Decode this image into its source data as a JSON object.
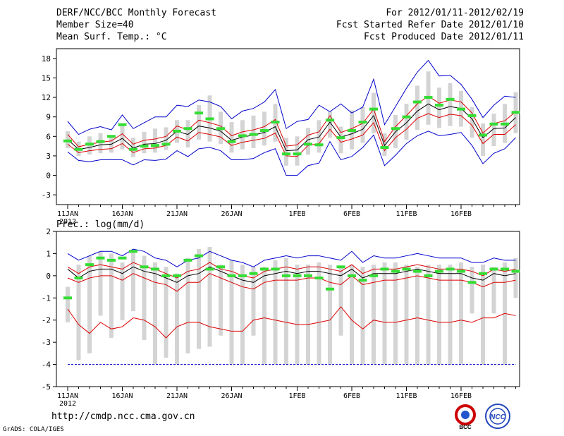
{
  "header": {
    "title": "DERF/NCC/BCC Monthly Forecast",
    "member_size": "Member Size=40",
    "variable": "Mean Surf. Temp.: °C",
    "for_range": "For 2012/01/11-2012/02/19",
    "started": "Fcst Started Refer Date 2012/01/10",
    "produced": "Fcst Produced Date 2012/01/11"
  },
  "footer": {
    "url": "http://cmdp.ncc.cma.gov.cn",
    "credit": "GrADS: COLA/IGES",
    "logo_left_text": "BCC",
    "logo_right_text": "NCC"
  },
  "colors": {
    "green": "#33dd33",
    "red": "#dd0000",
    "blue": "#0000cc",
    "black": "#000000",
    "box": "#d4d4d4"
  },
  "chart_data": [
    {
      "type": "line",
      "title": "Mean Surf. Temp.: °C",
      "ylim": [
        -4.5,
        19.5
      ],
      "yticks": [
        -3,
        0,
        3,
        6,
        9,
        12,
        15,
        18
      ],
      "x_tick_labels": [
        {
          "day": 1,
          "label": "11JAN"
        },
        {
          "day": 6,
          "label": "16JAN"
        },
        {
          "day": 11,
          "label": "21JAN"
        },
        {
          "day": 16,
          "label": "26JAN"
        },
        {
          "day": 22,
          "label": "1FEB"
        },
        {
          "day": 27,
          "label": "6FEB"
        },
        {
          "day": 32,
          "label": "11FEB"
        },
        {
          "day": 37,
          "label": "16FEB"
        }
      ],
      "year_label": "2012",
      "series": [
        {
          "name": "max",
          "color": "blue",
          "values": [
            8.3,
            6.3,
            7.1,
            7.5,
            7.0,
            9.3,
            7.2,
            8.1,
            9.0,
            9.0,
            10.8,
            10.6,
            11.6,
            11.3,
            10.6,
            8.7,
            9.9,
            10.3,
            11.3,
            13.2,
            7.2,
            8.3,
            8.6,
            10.8,
            9.8,
            11.0,
            9.6,
            10.5,
            14.8,
            7.8,
            10.6,
            13.4,
            15.9,
            17.7,
            15.3,
            15.4,
            14.0,
            11.7,
            8.9,
            10.8,
            12.2,
            12.0
          ]
        },
        {
          "name": "upper",
          "color": "red",
          "values": [
            6.3,
            4.4,
            4.8,
            5.1,
            5.3,
            6.4,
            4.8,
            5.4,
            5.6,
            6.0,
            7.6,
            7.0,
            8.5,
            8.1,
            7.6,
            6.1,
            6.7,
            7.0,
            7.5,
            8.6,
            4.5,
            4.7,
            6.2,
            6.7,
            9.2,
            6.6,
            7.2,
            8.0,
            10.2,
            5.2,
            7.5,
            9.2,
            11.0,
            12.2,
            11.1,
            11.6,
            11.3,
            9.6,
            6.5,
            8.0,
            8.4,
            9.8
          ]
        },
        {
          "name": "mean",
          "color": "black",
          "values": [
            5.5,
            4.0,
            4.3,
            4.7,
            4.8,
            5.7,
            4.2,
            4.8,
            4.9,
            5.4,
            6.8,
            6.3,
            7.6,
            7.3,
            6.8,
            5.4,
            5.9,
            6.2,
            6.6,
            7.5,
            3.8,
            3.9,
            5.5,
            5.9,
            8.2,
            5.9,
            6.4,
            7.1,
            9.2,
            4.6,
            6.7,
            8.1,
            9.9,
            11.0,
            10.1,
            10.6,
            10.3,
            8.7,
            5.8,
            7.2,
            7.3,
            8.9
          ]
        },
        {
          "name": "lower",
          "color": "red",
          "values": [
            4.8,
            3.5,
            3.8,
            4.0,
            4.1,
            4.9,
            3.5,
            4.1,
            4.2,
            4.6,
            5.9,
            5.3,
            6.6,
            6.3,
            5.9,
            4.6,
            5.1,
            5.4,
            5.7,
            6.5,
            3.0,
            2.9,
            4.6,
            4.9,
            7.1,
            5.1,
            5.6,
            6.2,
            8.1,
            3.8,
            5.8,
            7.1,
            8.8,
            9.5,
            8.9,
            9.4,
            9.2,
            7.7,
            4.9,
            6.3,
            6.3,
            7.8
          ]
        },
        {
          "name": "min",
          "color": "blue",
          "values": [
            3.6,
            2.3,
            2.1,
            2.4,
            2.4,
            2.4,
            1.6,
            2.4,
            2.3,
            2.5,
            3.8,
            2.9,
            4.1,
            4.3,
            3.8,
            2.4,
            2.4,
            2.6,
            3.5,
            4.1,
            0.0,
            0.0,
            1.5,
            1.9,
            5.2,
            2.4,
            2.9,
            4.3,
            6.2,
            1.5,
            3.1,
            4.9,
            6.1,
            6.8,
            6.1,
            6.3,
            6.6,
            4.6,
            1.8,
            3.4,
            4.1,
            5.8
          ]
        }
      ],
      "member_range": {
        "name": "member spread (gray bars)",
        "low": [
          4.2,
          3.0,
          3.2,
          3.4,
          3.5,
          4.0,
          2.8,
          3.4,
          3.5,
          3.9,
          5.0,
          4.3,
          5.5,
          5.2,
          4.8,
          3.5,
          4.0,
          4.2,
          4.6,
          5.2,
          1.5,
          1.5,
          3.2,
          3.5,
          5.8,
          3.4,
          4.0,
          5.0,
          6.5,
          3.0,
          4.2,
          5.5,
          7.0,
          7.8,
          7.3,
          7.6,
          7.5,
          5.8,
          3.0,
          4.5,
          5.0,
          6.5
        ],
        "high": [
          6.8,
          5.2,
          6.0,
          6.5,
          6.2,
          8.0,
          5.8,
          6.7,
          7.2,
          7.4,
          8.5,
          8.5,
          10.8,
          12.3,
          9.8,
          8.2,
          8.5,
          9.2,
          9.8,
          11.0,
          5.8,
          6.0,
          7.3,
          8.5,
          9.8,
          7.5,
          10.0,
          10.5,
          12.7,
          6.5,
          9.3,
          11.0,
          13.8,
          16.0,
          13.5,
          14.2,
          13.0,
          10.5,
          8.0,
          9.5,
          11.0,
          12.8
        ]
      },
      "observed_green": [
        5.3,
        4.0,
        4.8,
        5.2,
        6.0,
        7.8,
        4.0,
        4.5,
        4.6,
        4.8,
        6.8,
        7.2,
        9.6,
        8.7,
        7.2,
        5.2,
        6.1,
        6.3,
        6.9,
        8.2,
        3.3,
        3.3,
        4.8,
        4.7,
        8.5,
        5.8,
        6.9,
        8.2,
        10.2,
        4.3,
        7.2,
        9.0,
        11.3,
        12.0,
        10.8,
        11.7,
        10.2,
        9.2,
        6.2,
        7.9,
        7.9,
        9.7
      ]
    },
    {
      "type": "line",
      "title": "Prec.: log(mm/d)",
      "ylim": [
        -5,
        2
      ],
      "yticks": [
        -5,
        -4,
        -3,
        -2,
        -1,
        0,
        1,
        2
      ],
      "x_tick_labels": [
        {
          "day": 1,
          "label": "11JAN"
        },
        {
          "day": 6,
          "label": "16JAN"
        },
        {
          "day": 11,
          "label": "21JAN"
        },
        {
          "day": 16,
          "label": "26JAN"
        },
        {
          "day": 22,
          "label": "1FEB"
        },
        {
          "day": 27,
          "label": "6FEB"
        },
        {
          "day": 32,
          "label": "11FEB"
        },
        {
          "day": 37,
          "label": "16FEB"
        }
      ],
      "year_label": "2012",
      "series": [
        {
          "name": "max",
          "color": "blue",
          "values": [
            1.0,
            0.7,
            0.9,
            1.1,
            1.1,
            0.9,
            1.2,
            1.1,
            0.8,
            0.7,
            0.4,
            0.7,
            0.8,
            1.1,
            0.9,
            0.7,
            0.6,
            0.4,
            0.7,
            0.8,
            0.9,
            0.8,
            0.9,
            0.9,
            0.8,
            0.7,
            1.1,
            0.6,
            0.9,
            0.8,
            0.8,
            0.9,
            1.0,
            0.9,
            0.8,
            0.8,
            0.8,
            0.6,
            0.6,
            0.8,
            0.7,
            0.7
          ]
        },
        {
          "name": "upper",
          "color": "red",
          "values": [
            0.4,
            0.1,
            0.4,
            0.5,
            0.4,
            0.3,
            0.6,
            0.4,
            0.3,
            0.1,
            -0.1,
            0.2,
            0.3,
            0.6,
            0.3,
            0.2,
            0.0,
            -0.1,
            0.2,
            0.3,
            0.4,
            0.3,
            0.4,
            0.4,
            0.3,
            0.2,
            0.5,
            0.1,
            0.3,
            0.3,
            0.3,
            0.4,
            0.5,
            0.4,
            0.3,
            0.3,
            0.3,
            0.2,
            0.0,
            0.3,
            0.2,
            0.3
          ]
        },
        {
          "name": "mean",
          "color": "black",
          "values": [
            0.3,
            -0.1,
            0.2,
            0.3,
            0.3,
            0.1,
            0.4,
            0.2,
            0.1,
            -0.1,
            -0.3,
            0.0,
            0.1,
            0.4,
            0.2,
            0.0,
            -0.2,
            -0.3,
            0.0,
            0.1,
            0.2,
            0.1,
            0.2,
            0.2,
            0.1,
            0.0,
            0.3,
            -0.1,
            0.1,
            0.1,
            0.1,
            0.2,
            0.3,
            0.2,
            0.1,
            0.1,
            0.1,
            -0.1,
            -0.2,
            0.1,
            0.0,
            0.1
          ]
        },
        {
          "name": "lower",
          "color": "red",
          "values": [
            -0.1,
            -0.3,
            -0.1,
            0.0,
            0.0,
            -0.2,
            0.1,
            -0.1,
            -0.3,
            -0.4,
            -0.7,
            -0.3,
            -0.3,
            0.1,
            -0.1,
            -0.3,
            -0.5,
            -0.6,
            -0.3,
            -0.2,
            -0.2,
            -0.2,
            -0.1,
            -0.1,
            -0.3,
            -0.4,
            0.0,
            -0.4,
            -0.3,
            -0.2,
            -0.2,
            -0.1,
            0.0,
            -0.1,
            -0.2,
            -0.2,
            -0.2,
            -0.3,
            -0.5,
            -0.3,
            -0.3,
            -0.2
          ]
        },
        {
          "name": "min",
          "color": "blue",
          "values": [
            -4,
            -4,
            -4,
            -4,
            -4,
            -4,
            -4,
            -4,
            -4,
            -4,
            -4,
            -4,
            -4,
            -4,
            -4,
            -4,
            -4,
            -4,
            -4,
            -4,
            -4,
            -4,
            -4,
            -4,
            -4,
            -4,
            -4,
            -4,
            -4,
            -4,
            -4,
            -4,
            -4,
            -4,
            -4,
            -4,
            -4,
            -4,
            -4,
            -4,
            -4,
            -4
          ]
        },
        {
          "name": "low",
          "color": "red",
          "values": [
            -1.5,
            -2.2,
            -2.6,
            -2.1,
            -2.4,
            -2.3,
            -1.9,
            -2.0,
            -2.3,
            -2.8,
            -2.3,
            -2.1,
            -2.1,
            -2.3,
            -2.4,
            -2.5,
            -2.5,
            -2.0,
            -1.9,
            -2.0,
            -2.1,
            -2.2,
            -2.2,
            -2.1,
            -2.0,
            -1.4,
            -2.0,
            -2.4,
            -2.0,
            -2.1,
            -2.1,
            -2.0,
            -1.9,
            -2.0,
            -2.1,
            -2.1,
            -2.0,
            -2.1,
            -1.9,
            -1.9,
            -1.7,
            -1.8
          ]
        }
      ],
      "member_range": {
        "name": "member spread (gray bars)",
        "low": [
          -2.1,
          -3.8,
          -3.5,
          -1.8,
          -2.8,
          -2.0,
          -1.6,
          -2.9,
          -4.0,
          -3.7,
          -4.0,
          -3.5,
          -3.3,
          -3.2,
          -2.7,
          -4.0,
          -4.0,
          -2.7,
          -4.0,
          -4.0,
          -4.0,
          -4.0,
          -4.0,
          -4.0,
          -4.0,
          -2.7,
          -4.0,
          -4.0,
          -4.0,
          -4.0,
          -4.0,
          -4.0,
          -4.0,
          -4.0,
          -4.0,
          -4.0,
          -4.0,
          -1.7,
          -4.0,
          -1.7,
          -4.0,
          -1.0
        ],
        "high": [
          -0.5,
          0.5,
          0.9,
          1.1,
          1.0,
          0.6,
          1.2,
          0.9,
          0.6,
          0.4,
          0.1,
          0.8,
          1.2,
          1.3,
          0.5,
          0.7,
          0.5,
          0.4,
          0.4,
          0.7,
          0.8,
          0.5,
          0.5,
          0.6,
          0.5,
          0.4,
          0.5,
          0.4,
          0.5,
          0.6,
          0.6,
          0.5,
          0.4,
          0.5,
          0.5,
          0.5,
          0.6,
          0.4,
          0.5,
          0.4,
          0.6,
          0.8
        ]
      },
      "observed_green": [
        -1.0,
        -0.1,
        0.5,
        0.8,
        0.7,
        0.8,
        1.1,
        0.4,
        0.3,
        0.0,
        0.0,
        0.7,
        0.9,
        0.3,
        0.4,
        0.0,
        0.0,
        0.1,
        0.3,
        0.3,
        0.0,
        0.0,
        0.0,
        -0.1,
        -0.6,
        0.4,
        0.0,
        -0.2,
        0.0,
        0.3,
        0.2,
        0.3,
        0.2,
        0.0,
        0.2,
        0.3,
        0.2,
        -0.3,
        0.1,
        0.3,
        0.3,
        0.2
      ]
    }
  ]
}
